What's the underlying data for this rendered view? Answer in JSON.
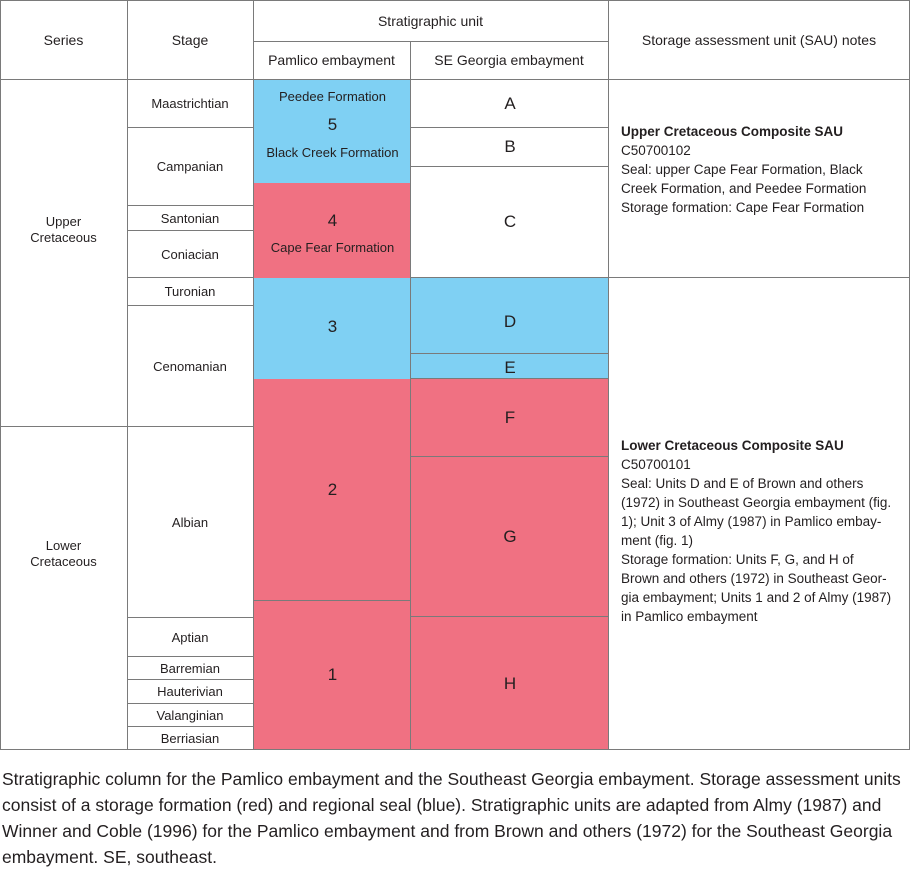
{
  "headers": {
    "series": "Series",
    "stage": "Stage",
    "stratigraphic_unit": "Stratigraphic unit",
    "pamlico": "Pamlico embayment",
    "se_georgia": "SE Georgia embayment",
    "sau_notes": "Storage assessment unit (SAU) notes"
  },
  "series": {
    "upper": [
      "Upper",
      "Cretaceous"
    ],
    "lower": [
      "Lower",
      "Cretaceous"
    ]
  },
  "stages": [
    "Maastrichtian",
    "Campanian",
    "Santonian",
    "Coniacian",
    "Turonian",
    "Cenomanian",
    "Albian",
    "Aptian",
    "Barremian",
    "Hauterivian",
    "Valanginian",
    "Berriasian"
  ],
  "pamlico_units": {
    "u5": "5",
    "peedee": "Peedee Formation",
    "black_creek": "Black Creek Formation",
    "u4": "4",
    "cape_fear": "Cape Fear Formation",
    "u3": "3",
    "u2": "2",
    "u1": "1"
  },
  "georgia_units": [
    "A",
    "B",
    "C",
    "D",
    "E",
    "F",
    "G",
    "H"
  ],
  "sau": {
    "upper": {
      "title": "Upper Cretaceous Composite SAU",
      "lines": [
        "C50700102",
        "Seal: upper Cape Fear Formation, Black",
        "Creek Formation, and Peedee Formation",
        "Storage formation: Cape Fear Formation"
      ]
    },
    "lower": {
      "title": "Lower Cretaceous Composite SAU",
      "lines": [
        "C50700101",
        "Seal: Units D and E of Brown and others",
        "(1972) in Southeast Georgia embayment (fig.",
        "1); Unit 3 of Almy (1987) in Pamlico embay-",
        "ment (fig. 1)",
        "Storage formation: Units F, G, and H of",
        "Brown and others (1972) in Southeast Geor-",
        "gia embayment; Units 1 and 2 of Almy (1987)",
        "in Pamlico embayment"
      ]
    }
  },
  "caption": "Stratigraphic column for the Pamlico embayment and the Southeast Georgia embayment. Storage assessment units consist of a storage formation (red) and regional seal (blue). Stratigraphic units are adapted from Almy (1987) and Winner and Coble (1996) for the Pamlico embayment and from Brown and others (1972) for the Southeast Georgia embayment. SE, southeast.",
  "colors": {
    "seal_blue": "#7fd0f3",
    "storage_red": "#f07182",
    "grid": "#7a7a7a"
  }
}
